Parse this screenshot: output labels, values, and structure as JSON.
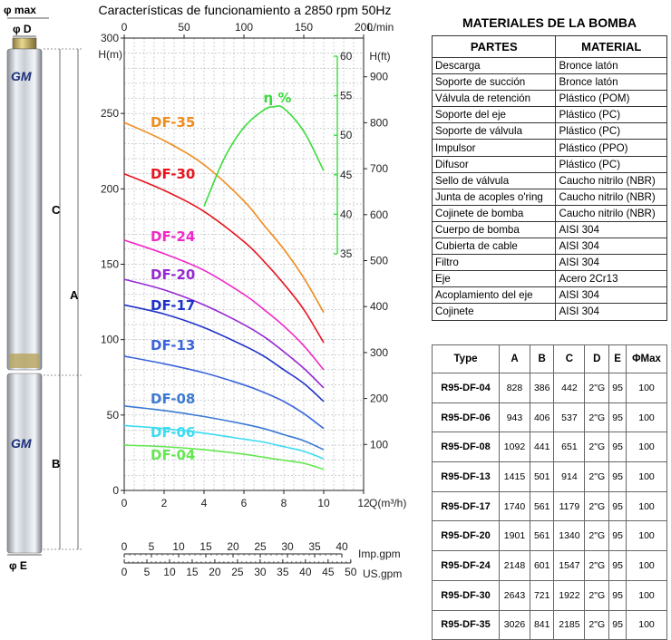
{
  "pump": {
    "brand": "GM",
    "dims": {
      "phimax": "φ max",
      "phid": "φ D",
      "c": "C",
      "a": "A",
      "b": "B",
      "phie": "φ E"
    }
  },
  "chart_data": {
    "type": "line",
    "title": "Características de funcionamiento a 2850 rpm 50Hz",
    "x_axes": {
      "q": {
        "label": "Q(m³/h)",
        "range": [
          0,
          12
        ],
        "ticks": [
          0,
          2,
          4,
          6,
          8,
          10,
          12
        ]
      },
      "lmin": {
        "label": "L/min",
        "range": [
          0,
          200
        ],
        "ticks": [
          0,
          50,
          100,
          150,
          200
        ]
      },
      "imp": {
        "label": "Imp.gpm",
        "range": [
          0,
          40
        ],
        "ticks": [
          0,
          5,
          10,
          15,
          20,
          25,
          30,
          35,
          40
        ]
      },
      "us": {
        "label": "US.gpm",
        "range": [
          0,
          50
        ],
        "ticks": [
          0,
          5,
          10,
          15,
          20,
          25,
          30,
          35,
          40,
          45,
          50
        ]
      }
    },
    "y_axes": {
      "hm": {
        "label": "H(m)",
        "range": [
          0,
          300
        ],
        "ticks": [
          0,
          50,
          100,
          150,
          200,
          250,
          300
        ]
      },
      "hft": {
        "label": "H(ft)",
        "range": [
          0,
          984
        ],
        "ticks": [
          100,
          200,
          300,
          400,
          500,
          600,
          700,
          800,
          900
        ]
      },
      "eff": {
        "label": "η %",
        "range": [
          35,
          60
        ],
        "ticks": [
          35,
          40,
          45,
          50,
          55,
          60
        ]
      }
    },
    "grid": true,
    "series": [
      {
        "name": "DF-35",
        "color": "#f08c1e",
        "x": [
          0,
          2,
          4,
          6,
          7,
          8,
          9,
          10
        ],
        "y": [
          244,
          232,
          216,
          192,
          176,
          160,
          141,
          118
        ]
      },
      {
        "name": "DF-30",
        "color": "#e8141e",
        "x": [
          0,
          2,
          4,
          6,
          7,
          8,
          9,
          10
        ],
        "y": [
          210,
          199,
          185,
          165,
          152,
          137,
          120,
          98
        ]
      },
      {
        "name": "DF-24",
        "color": "#f028c8",
        "x": [
          0,
          2,
          4,
          6,
          7,
          8,
          9,
          10
        ],
        "y": [
          166,
          157,
          146,
          130,
          120,
          109,
          96,
          80
        ]
      },
      {
        "name": "DF-20",
        "color": "#9628d2",
        "x": [
          0,
          2,
          4,
          6,
          7,
          8,
          9,
          10
        ],
        "y": [
          140,
          133,
          123,
          110,
          102,
          92,
          81,
          68
        ]
      },
      {
        "name": "DF-17",
        "color": "#1e32c8",
        "x": [
          0,
          2,
          4,
          6,
          7,
          8,
          9,
          10
        ],
        "y": [
          123,
          117,
          108,
          96,
          89,
          80,
          71,
          59
        ]
      },
      {
        "name": "DF-13",
        "color": "#3c64dc",
        "x": [
          0,
          2,
          4,
          6,
          7,
          8,
          9,
          10
        ],
        "y": [
          89,
          84,
          78,
          70,
          65,
          59,
          51,
          41
        ]
      },
      {
        "name": "DF-08",
        "color": "#3c7ad2",
        "x": [
          0,
          2,
          4,
          6,
          7,
          8,
          9,
          10
        ],
        "y": [
          56,
          53,
          49,
          44,
          41,
          37,
          33,
          27
        ]
      },
      {
        "name": "DF-06",
        "color": "#3cdcf0",
        "x": [
          0,
          2,
          4,
          6,
          7,
          8,
          9,
          10
        ],
        "y": [
          43,
          41,
          38,
          34,
          32,
          29,
          26,
          21
        ]
      },
      {
        "name": "DF-04",
        "color": "#64e650",
        "x": [
          0,
          2,
          4,
          6,
          7,
          8,
          9,
          10
        ],
        "y": [
          30,
          29,
          27,
          24,
          22,
          20,
          18,
          14
        ]
      }
    ],
    "efficiency": {
      "name": "η %",
      "color": "#3cdc3c",
      "x": [
        4,
        5,
        6,
        7,
        7.5,
        8,
        9,
        10
      ],
      "y": [
        41,
        47,
        51,
        53.2,
        53.6,
        53.4,
        50.5,
        45.5
      ]
    }
  },
  "materials": {
    "title": "MATERIALES DE LA BOMBA",
    "headers": [
      "PARTES",
      "MATERIAL"
    ],
    "rows": [
      [
        "Descarga",
        "Bronce latón"
      ],
      [
        "Soporte de succión",
        "Bronce latón"
      ],
      [
        "Válvula de retención",
        "Plástico (POM)"
      ],
      [
        "Soporte del eje",
        "Plástico (PC)"
      ],
      [
        "Soporte de válvula",
        "Plástico (PC)"
      ],
      [
        "Impulsor",
        "Plástico (PPO)"
      ],
      [
        "Difusor",
        "Plástico (PC)"
      ],
      [
        "Sello de válvula",
        "Caucho nitrilo (NBR)"
      ],
      [
        "Junta de acoples o'ring",
        "Caucho nitrilo (NBR)"
      ],
      [
        "Cojinete de bomba",
        "Caucho nitrilo (NBR)"
      ],
      [
        "Cuerpo de bomba",
        "AISI 304"
      ],
      [
        "Cubierta de cable",
        "AISI 304"
      ],
      [
        "Filtro",
        "AISI 304"
      ],
      [
        "Eje",
        "Acero 2Cr13"
      ],
      [
        "Acoplamiento del eje",
        "AISI 304"
      ],
      [
        "Cojinete",
        "AISI 304"
      ]
    ]
  },
  "types": {
    "headers": [
      "Type",
      "A",
      "B",
      "C",
      "D",
      "E",
      "ΦMax"
    ],
    "rows": [
      [
        "R95-DF-04",
        "828",
        "386",
        "442",
        "2\"G",
        "95",
        "100"
      ],
      [
        "R95-DF-06",
        "943",
        "406",
        "537",
        "2\"G",
        "95",
        "100"
      ],
      [
        "R95-DF-08",
        "1092",
        "441",
        "651",
        "2\"G",
        "95",
        "100"
      ],
      [
        "R95-DF-13",
        "1415",
        "501",
        "914",
        "2\"G",
        "95",
        "100"
      ],
      [
        "R95-DF-17",
        "1740",
        "561",
        "1179",
        "2\"G",
        "95",
        "100"
      ],
      [
        "R95-DF-20",
        "1901",
        "561",
        "1340",
        "2\"G",
        "95",
        "100"
      ],
      [
        "R95-DF-24",
        "2148",
        "601",
        "1547",
        "2\"G",
        "95",
        "100"
      ],
      [
        "R95-DF-30",
        "2643",
        "721",
        "1922",
        "2\"G",
        "95",
        "100"
      ],
      [
        "R95-DF-35",
        "3026",
        "841",
        "2185",
        "2\"G",
        "95",
        "100"
      ]
    ]
  }
}
